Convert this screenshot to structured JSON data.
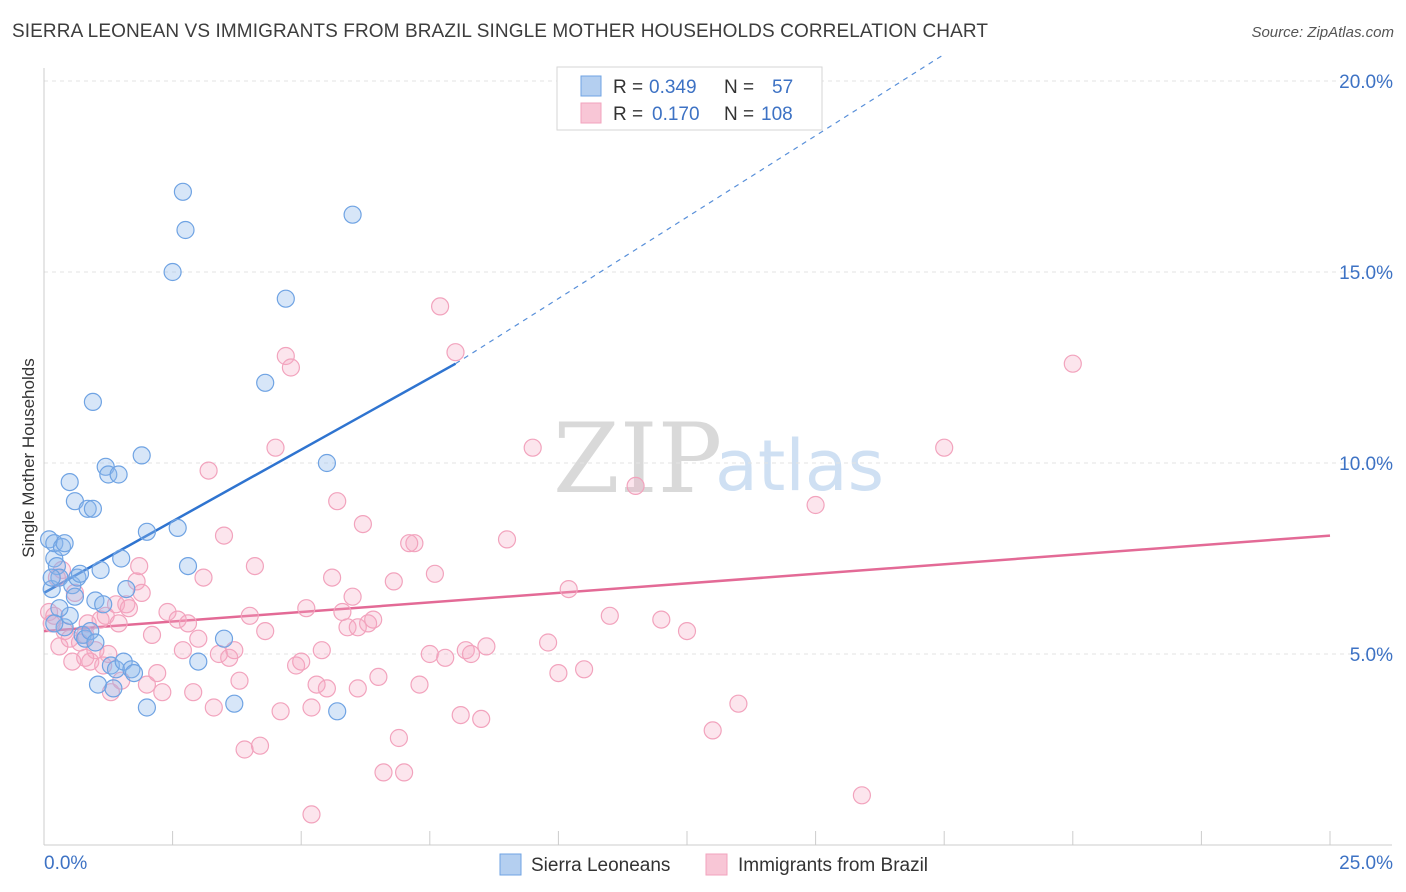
{
  "header": {
    "title": "SIERRA LEONEAN VS IMMIGRANTS FROM BRAZIL SINGLE MOTHER HOUSEHOLDS CORRELATION CHART",
    "source": "Source: ZipAtlas.com"
  },
  "watermark": {
    "zip": "ZIP",
    "atlas": "atlas"
  },
  "legend": {
    "r_label": "R =",
    "n_label": "N =",
    "entries": [
      {
        "r": "0.349",
        "n": "57"
      },
      {
        "r": "0.170",
        "n": "108"
      }
    ]
  },
  "chart_data": {
    "type": "scatter",
    "title": "SIERRA LEONEAN VS IMMIGRANTS FROM BRAZIL SINGLE MOTHER HOUSEHOLDS CORRELATION CHART",
    "xlabel": "",
    "ylabel": "Single Mother Households",
    "xlim": [
      0,
      25
    ],
    "ylim": [
      0,
      20.5
    ],
    "grid": true,
    "legend_position": "top-center",
    "x_tick_labels": [
      {
        "value": 0,
        "label": "0.0%"
      },
      {
        "value": 25,
        "label": "25.0%"
      }
    ],
    "y_tick_labels": [
      {
        "value": 5,
        "label": "5.0%"
      },
      {
        "value": 10,
        "label": "10.0%"
      },
      {
        "value": 15,
        "label": "15.0%"
      },
      {
        "value": 20,
        "label": "20.0%"
      }
    ],
    "series": [
      {
        "name": "Sierra Leoneans",
        "color": "#6fa3e3",
        "line_color": "#2f74d0",
        "r": 0.349,
        "n": 57,
        "trend": {
          "x0": 0,
          "y0": 6.6,
          "x1": 8.0,
          "y1": 12.6,
          "dash_to_x": 17.5,
          "dash_to_y": 20.7
        },
        "points": [
          [
            0.1,
            8.0
          ],
          [
            0.2,
            7.5
          ],
          [
            0.2,
            7.9
          ],
          [
            0.25,
            7.3
          ],
          [
            0.15,
            6.7
          ],
          [
            0.3,
            7.0
          ],
          [
            0.35,
            7.8
          ],
          [
            0.4,
            7.9
          ],
          [
            0.4,
            5.7
          ],
          [
            0.5,
            9.5
          ],
          [
            0.55,
            6.8
          ],
          [
            0.6,
            9.0
          ],
          [
            0.6,
            6.5
          ],
          [
            0.65,
            7.0
          ],
          [
            0.7,
            7.1
          ],
          [
            0.75,
            5.5
          ],
          [
            0.8,
            5.4
          ],
          [
            0.9,
            5.6
          ],
          [
            0.85,
            8.8
          ],
          [
            0.95,
            8.8
          ],
          [
            0.95,
            11.6
          ],
          [
            1.0,
            6.4
          ],
          [
            1.05,
            4.2
          ],
          [
            1.1,
            7.2
          ],
          [
            1.15,
            6.3
          ],
          [
            1.2,
            9.9
          ],
          [
            1.25,
            9.7
          ],
          [
            1.3,
            4.7
          ],
          [
            1.35,
            4.1
          ],
          [
            1.4,
            4.6
          ],
          [
            1.45,
            9.7
          ],
          [
            1.5,
            7.5
          ],
          [
            1.55,
            4.8
          ],
          [
            1.6,
            6.7
          ],
          [
            1.7,
            4.6
          ],
          [
            1.75,
            4.5
          ],
          [
            1.9,
            10.2
          ],
          [
            2.0,
            3.6
          ],
          [
            2.0,
            8.2
          ],
          [
            2.5,
            15.0
          ],
          [
            2.6,
            8.3
          ],
          [
            2.7,
            17.1
          ],
          [
            2.75,
            16.1
          ],
          [
            2.8,
            7.3
          ],
          [
            3.0,
            4.8
          ],
          [
            3.5,
            5.4
          ],
          [
            3.7,
            3.7
          ],
          [
            4.3,
            12.1
          ],
          [
            4.7,
            14.3
          ],
          [
            5.5,
            10.0
          ],
          [
            5.7,
            3.5
          ],
          [
            6.0,
            16.5
          ],
          [
            0.5,
            6.0
          ],
          [
            0.3,
            6.2
          ],
          [
            0.2,
            5.8
          ],
          [
            1.0,
            5.3
          ],
          [
            0.15,
            7.0
          ]
        ]
      },
      {
        "name": "Immigrants from Brazil",
        "color": "#f2a3bd",
        "line_color": "#e36a96",
        "r": 0.17,
        "n": 108,
        "trend": {
          "x0": 0,
          "y0": 5.6,
          "x1": 25,
          "y1": 8.1
        },
        "points": [
          [
            0.1,
            6.1
          ],
          [
            0.15,
            5.8
          ],
          [
            0.2,
            6.0
          ],
          [
            0.3,
            5.2
          ],
          [
            0.35,
            7.2
          ],
          [
            0.4,
            5.6
          ],
          [
            0.5,
            5.4
          ],
          [
            0.55,
            4.8
          ],
          [
            0.6,
            6.6
          ],
          [
            0.7,
            5.3
          ],
          [
            0.8,
            5.5
          ],
          [
            0.85,
            5.8
          ],
          [
            0.9,
            4.8
          ],
          [
            1.0,
            5.1
          ],
          [
            1.1,
            5.9
          ],
          [
            1.15,
            4.7
          ],
          [
            1.2,
            6.0
          ],
          [
            1.25,
            5.0
          ],
          [
            1.3,
            4.0
          ],
          [
            1.4,
            6.3
          ],
          [
            1.45,
            5.8
          ],
          [
            1.5,
            4.3
          ],
          [
            1.6,
            6.3
          ],
          [
            1.65,
            6.2
          ],
          [
            1.8,
            6.9
          ],
          [
            1.85,
            7.3
          ],
          [
            1.9,
            6.6
          ],
          [
            2.0,
            4.2
          ],
          [
            2.1,
            5.5
          ],
          [
            2.2,
            4.5
          ],
          [
            2.3,
            4.0
          ],
          [
            2.4,
            6.1
          ],
          [
            2.6,
            5.9
          ],
          [
            2.7,
            5.1
          ],
          [
            2.8,
            5.8
          ],
          [
            2.9,
            4.0
          ],
          [
            3.0,
            5.4
          ],
          [
            3.1,
            7.0
          ],
          [
            3.2,
            9.8
          ],
          [
            3.3,
            3.6
          ],
          [
            3.4,
            5.0
          ],
          [
            3.5,
            8.1
          ],
          [
            3.6,
            4.9
          ],
          [
            3.7,
            5.1
          ],
          [
            3.8,
            4.3
          ],
          [
            3.9,
            2.5
          ],
          [
            4.0,
            6.0
          ],
          [
            4.1,
            7.3
          ],
          [
            4.2,
            2.6
          ],
          [
            4.3,
            5.6
          ],
          [
            4.5,
            10.4
          ],
          [
            4.6,
            3.5
          ],
          [
            4.7,
            12.8
          ],
          [
            4.8,
            12.5
          ],
          [
            4.9,
            4.7
          ],
          [
            5.0,
            4.8
          ],
          [
            5.1,
            6.2
          ],
          [
            5.2,
            3.6
          ],
          [
            5.3,
            4.2
          ],
          [
            5.4,
            5.1
          ],
          [
            5.5,
            4.1
          ],
          [
            5.6,
            7.0
          ],
          [
            5.7,
            9.0
          ],
          [
            5.8,
            6.1
          ],
          [
            5.9,
            5.7
          ],
          [
            6.0,
            6.5
          ],
          [
            6.1,
            4.1
          ],
          [
            6.2,
            8.4
          ],
          [
            6.3,
            5.8
          ],
          [
            6.4,
            5.9
          ],
          [
            6.5,
            4.4
          ],
          [
            6.6,
            1.9
          ],
          [
            6.8,
            6.9
          ],
          [
            6.9,
            2.8
          ],
          [
            7.0,
            1.9
          ],
          [
            7.2,
            7.9
          ],
          [
            7.3,
            4.2
          ],
          [
            7.5,
            5.0
          ],
          [
            7.6,
            7.1
          ],
          [
            7.7,
            14.1
          ],
          [
            7.8,
            4.9
          ],
          [
            8.0,
            12.9
          ],
          [
            8.1,
            3.4
          ],
          [
            8.2,
            5.1
          ],
          [
            8.3,
            5.0
          ],
          [
            8.5,
            3.3
          ],
          [
            8.6,
            5.2
          ],
          [
            9.0,
            8.0
          ],
          [
            9.5,
            10.4
          ],
          [
            9.8,
            5.3
          ],
          [
            10.0,
            4.5
          ],
          [
            10.2,
            6.7
          ],
          [
            10.5,
            4.6
          ],
          [
            11.0,
            6.0
          ],
          [
            11.5,
            9.4
          ],
          [
            12.0,
            5.9
          ],
          [
            12.5,
            5.6
          ],
          [
            13.0,
            3.0
          ],
          [
            13.5,
            3.7
          ],
          [
            15.0,
            8.9
          ],
          [
            17.5,
            10.4
          ],
          [
            20.0,
            12.6
          ],
          [
            0.25,
            7.0
          ],
          [
            5.2,
            0.8
          ],
          [
            6.1,
            5.7
          ],
          [
            0.8,
            4.9
          ],
          [
            15.9,
            1.3
          ],
          [
            7.1,
            7.9
          ]
        ]
      }
    ]
  }
}
